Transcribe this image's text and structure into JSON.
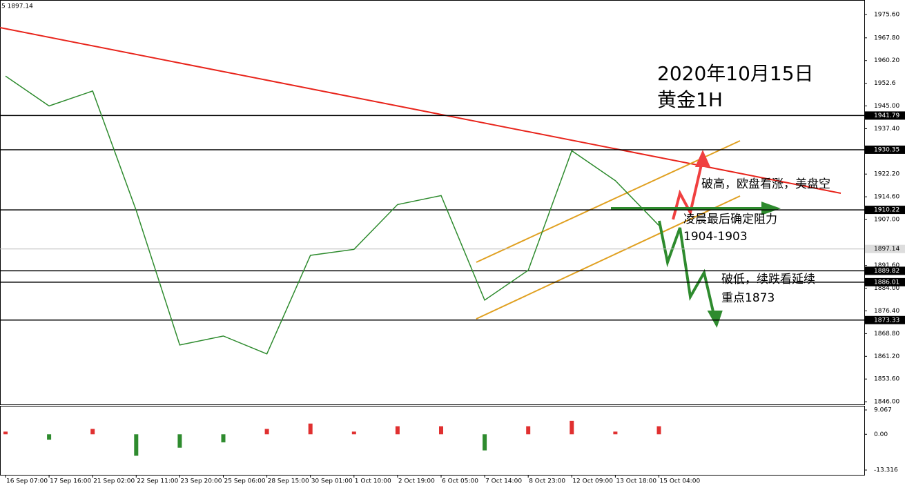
{
  "chart_data": {
    "type": "line",
    "info": "5 1897.14",
    "categories": [
      "16 Sep 07:00",
      "17 Sep 16:00",
      "21 Sep 02:00",
      "22 Sep 11:00",
      "23 Sep 20:00",
      "25 Sep 06:00",
      "28 Sep 15:00",
      "30 Sep 01:00",
      "1 Oct 10:00",
      "2 Oct 19:00",
      "6 Oct 05:00",
      "7 Oct 14:00",
      "8 Oct 23:00",
      "12 Oct 09:00",
      "13 Oct 18:00",
      "15 Oct 04:00"
    ],
    "values": [
      1955,
      1945,
      1950,
      1910,
      1865,
      1868,
      1862,
      1895,
      1897,
      1912,
      1915,
      1880,
      1890,
      1930,
      1920,
      1905
    ],
    "color": "#2e8b2e",
    "ylim": [
      1845.1,
      1980.0
    ],
    "yticks": [
      {
        "value": 1975.6,
        "label": "1975.60"
      },
      {
        "value": 1967.8,
        "label": "1967.80"
      },
      {
        "value": 1960.2,
        "label": "1960.20"
      },
      1952.6,
      {
        "value": 1945.0,
        "label": "1945.00"
      },
      {
        "value": 1937.4,
        "label": "1937.40"
      },
      {
        "value": 1922.2,
        "label": "1922.20"
      },
      {
        "value": 1914.6,
        "label": "1914.60"
      },
      {
        "value": 1907.0,
        "label": "1907.00"
      },
      {
        "value": 1891.6,
        "label": "1891.60"
      },
      {
        "value": 1884.0,
        "label": "1884.00"
      },
      {
        "value": 1876.4,
        "label": "1876.40"
      },
      {
        "value": 1868.8,
        "label": "1868.80"
      },
      {
        "value": 1861.2,
        "label": "1861.20"
      },
      {
        "value": 1853.6,
        "label": "1853.60"
      },
      {
        "value": 1846.0,
        "label": "1846.00"
      }
    ],
    "levels": [
      1941.79,
      1930.35,
      1910.22,
      1889.82,
      1886.01,
      1873.33
    ],
    "current_price": 1897.14,
    "macd": {
      "values": [
        1,
        -2,
        2,
        -8,
        -5,
        -3,
        2,
        4,
        1,
        3,
        3,
        -6,
        3,
        5,
        1,
        3
      ],
      "ylim": [
        -15.1,
        10.1
      ],
      "yticks": [
        9.067,
        {
          "value": 0,
          "label": "0.00"
        },
        -13.316
      ]
    },
    "annotations": [
      "2020年10月15日",
      "黄金1H",
      "破高，欧盘看涨，美盘空",
      "凌晨最后确定阻力",
      "1904-1903",
      "破低，续跌看延续",
      "重点1873"
    ]
  }
}
